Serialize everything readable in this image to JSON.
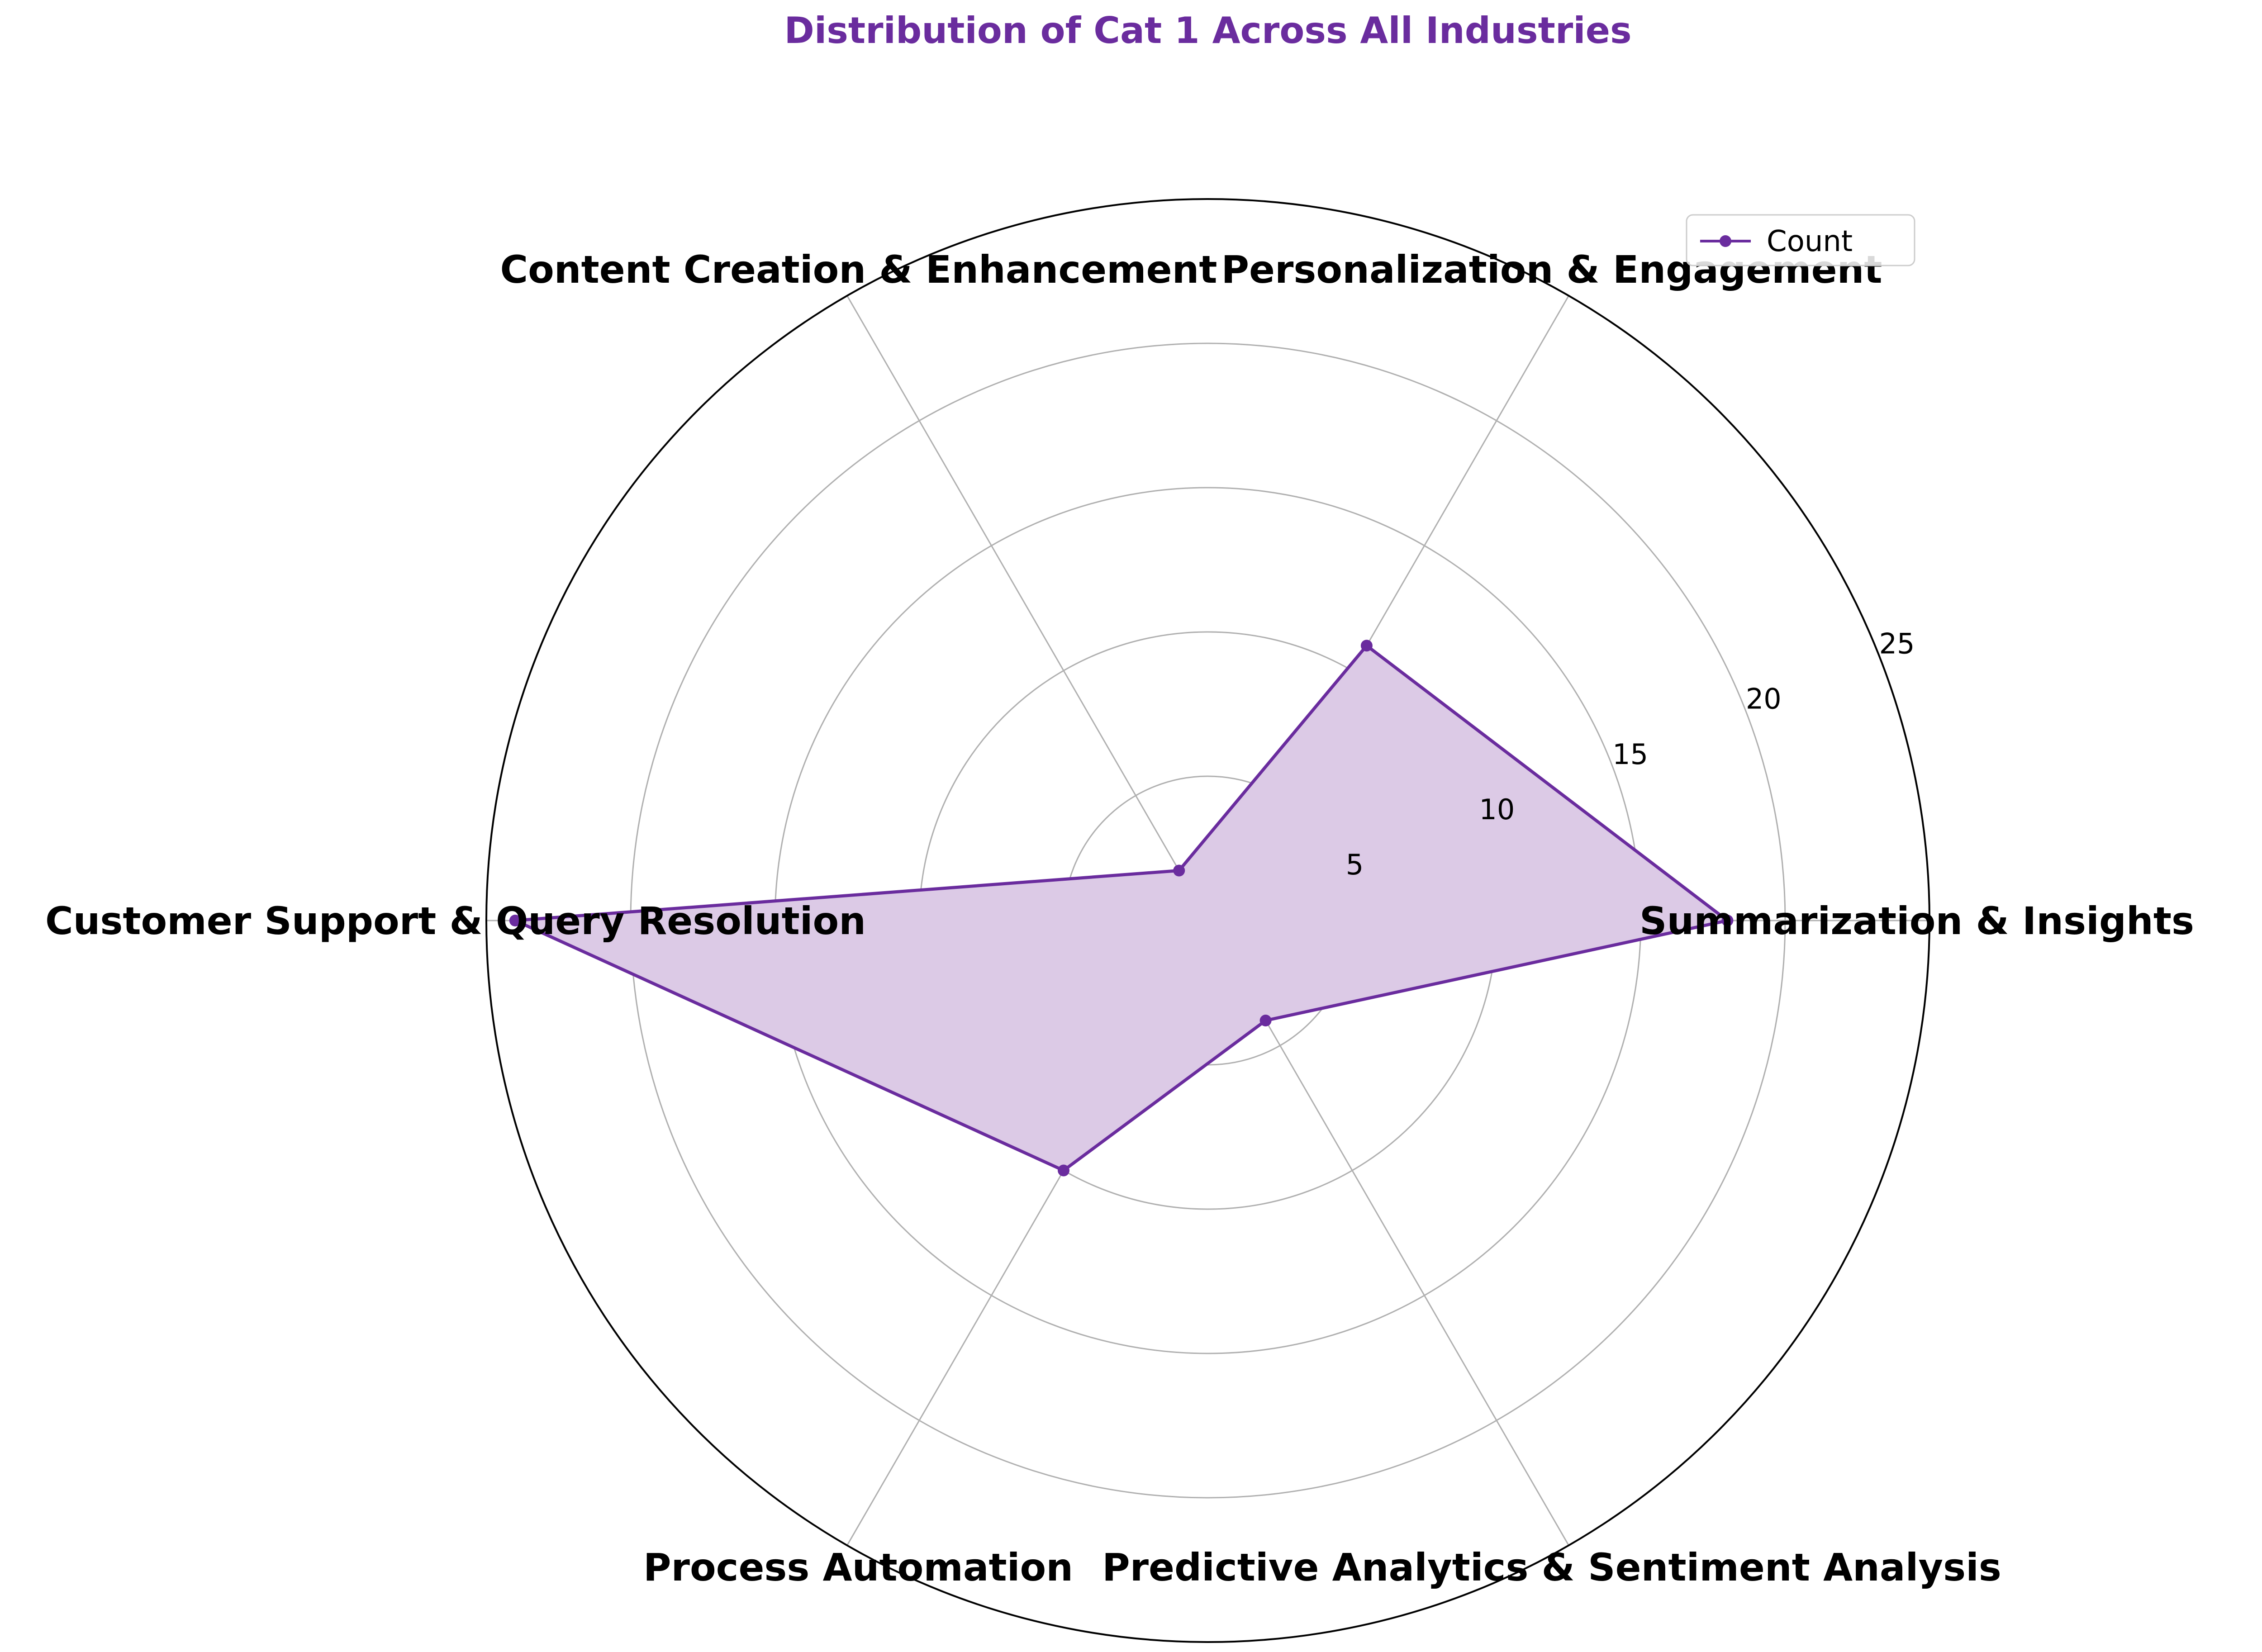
{
  "chart_data": {
    "type": "radar",
    "title": "Distribution of Cat 1 Across All Industries",
    "categories": [
      "Summarization & Insights",
      "Personalization & Engagement",
      "Content Creation & Enhancement",
      "Customer Support & Query Resolution",
      "Process Automation",
      "Predictive Analytics & Sentiment Analysis"
    ],
    "series": [
      {
        "name": "Count",
        "values": [
          18,
          11,
          2,
          24,
          10,
          4
        ]
      }
    ],
    "r_ticks": [
      5,
      10,
      15,
      20,
      25
    ],
    "rlim": [
      0,
      25
    ],
    "legend": "top-right",
    "grid": true,
    "colors": {
      "line": "#6a2c9e",
      "fill": "#dccae6",
      "title": "#6a2c9e",
      "grid": "#b0b0b0",
      "outline": "#000000"
    }
  }
}
